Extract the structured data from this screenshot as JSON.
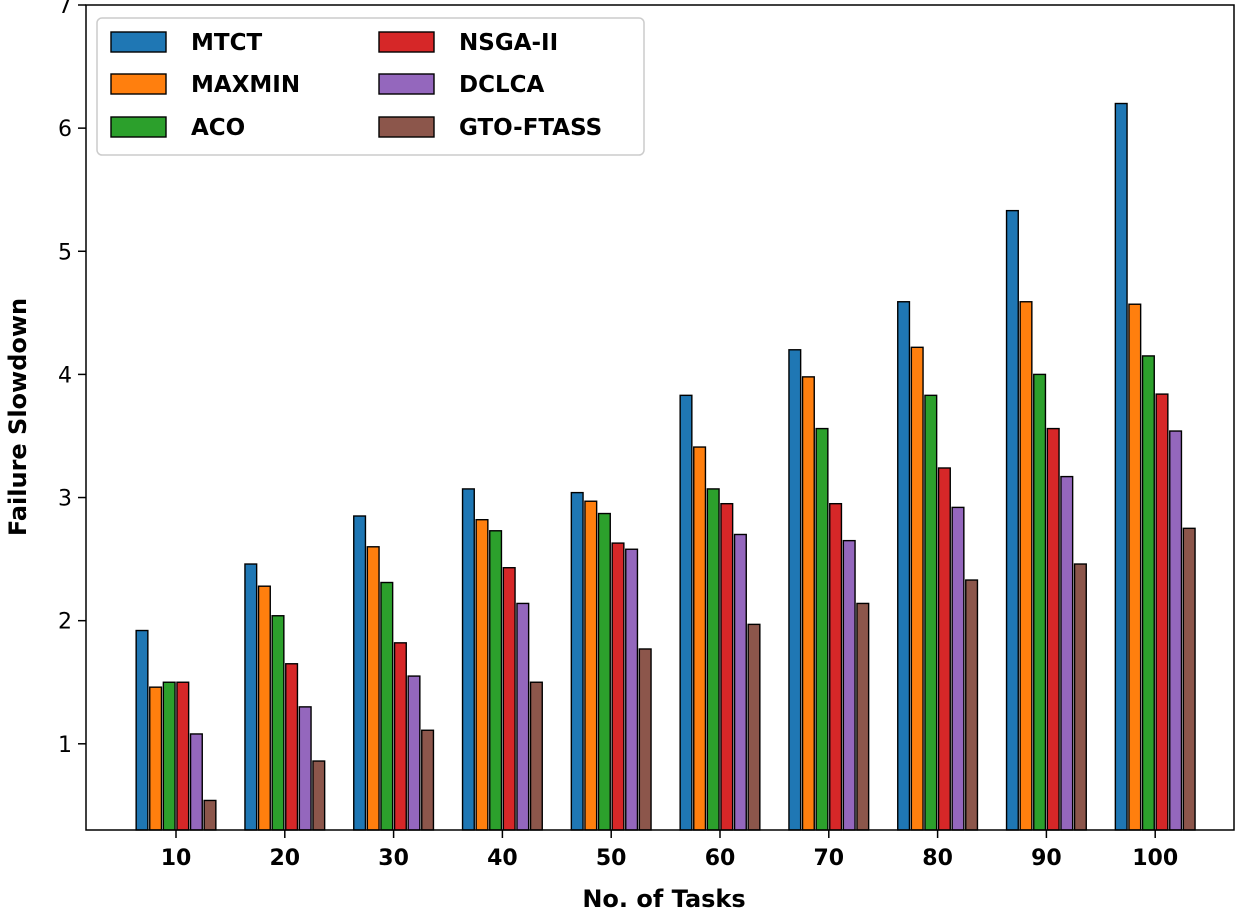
{
  "chart_data": {
    "type": "bar",
    "title": "",
    "xlabel": "No. of Tasks",
    "ylabel": "Failure Slowdown",
    "categories": [
      "10",
      "20",
      "30",
      "40",
      "50",
      "60",
      "70",
      "80",
      "90",
      "100"
    ],
    "ylim": [
      0.3,
      7.0
    ],
    "yticks": [
      1,
      2,
      3,
      4,
      5,
      6,
      7
    ],
    "grid": false,
    "legend_position": "top-left",
    "legend_columns": 2,
    "series": [
      {
        "name": "MTCT",
        "color": "#1f77b4",
        "values": [
          1.92,
          2.46,
          2.85,
          3.07,
          3.04,
          3.83,
          4.2,
          4.59,
          5.33,
          6.2
        ]
      },
      {
        "name": "MAXMIN",
        "color": "#ff7f0e",
        "values": [
          1.46,
          2.28,
          2.6,
          2.82,
          2.97,
          3.41,
          3.98,
          4.22,
          4.59,
          4.57
        ]
      },
      {
        "name": "ACO",
        "color": "#2ca02c",
        "values": [
          1.5,
          2.04,
          2.31,
          2.73,
          2.87,
          3.07,
          3.56,
          3.83,
          4.0,
          4.15
        ]
      },
      {
        "name": "NSGA-II",
        "color": "#d62728",
        "values": [
          1.5,
          1.65,
          1.82,
          2.43,
          2.63,
          2.95,
          2.95,
          3.24,
          3.56,
          3.84
        ]
      },
      {
        "name": "DCLCA",
        "color": "#9467bd",
        "values": [
          1.08,
          1.3,
          1.55,
          2.14,
          2.58,
          2.7,
          2.65,
          2.92,
          3.17,
          3.54
        ]
      },
      {
        "name": "GTO-FTASS",
        "color": "#8c564b",
        "values": [
          0.54,
          0.86,
          1.11,
          1.5,
          1.77,
          1.97,
          2.14,
          2.33,
          2.46,
          2.75
        ]
      }
    ]
  }
}
